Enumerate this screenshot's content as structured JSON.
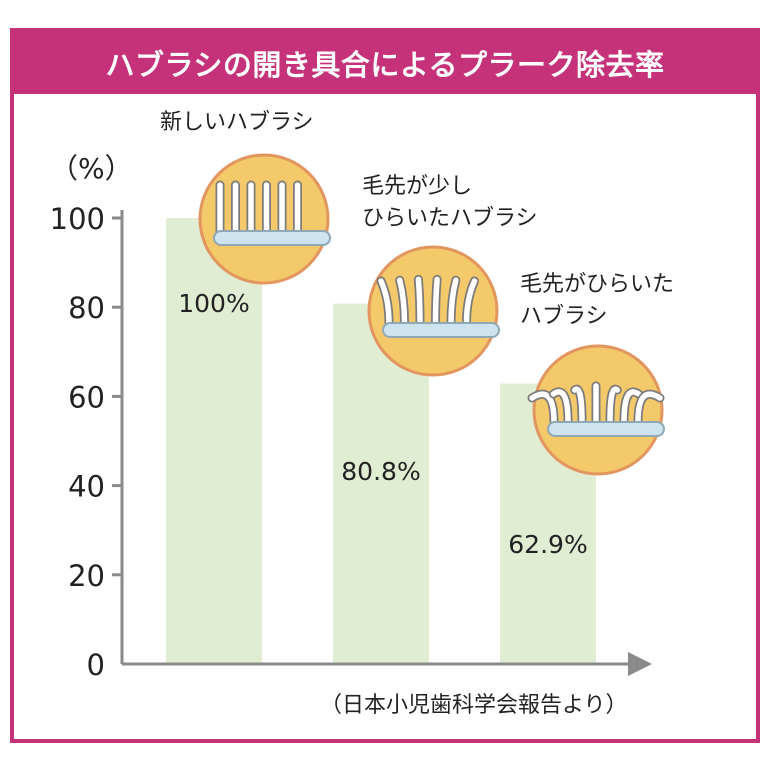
{
  "title": "ハブラシの開き具合によるプラーク除去率",
  "source": "（日本小児歯科学会報告より）",
  "colors": {
    "frame": "#c5327a",
    "bar": "#e1edd3",
    "axis": "#8a8a8a",
    "icon_fill": "#f3c96a",
    "icon_border": "#e3955e",
    "handle": "#cde4f0"
  },
  "chart_data": {
    "type": "bar",
    "title": "ハブラシの開き具合によるプラーク除去率",
    "ylabel": "（%）",
    "ylim": [
      0,
      100
    ],
    "yticks": [
      0,
      20,
      40,
      60,
      80,
      100
    ],
    "grid": false,
    "categories": [
      {
        "name_lines": [
          "新しいハブラシ"
        ],
        "icon": "new-toothbrush-icon",
        "spread": 0
      },
      {
        "name_lines": [
          "毛先が少し",
          "ひらいたハブラシ"
        ],
        "icon": "slightly-spread-toothbrush-icon",
        "spread": 1
      },
      {
        "name_lines": [
          "毛先がひらいた",
          "ハブラシ"
        ],
        "icon": "spread-toothbrush-icon",
        "spread": 2
      }
    ],
    "values": [
      100,
      80.8,
      62.9
    ],
    "value_labels": [
      "100%",
      "80.8%",
      "62.9%"
    ]
  }
}
